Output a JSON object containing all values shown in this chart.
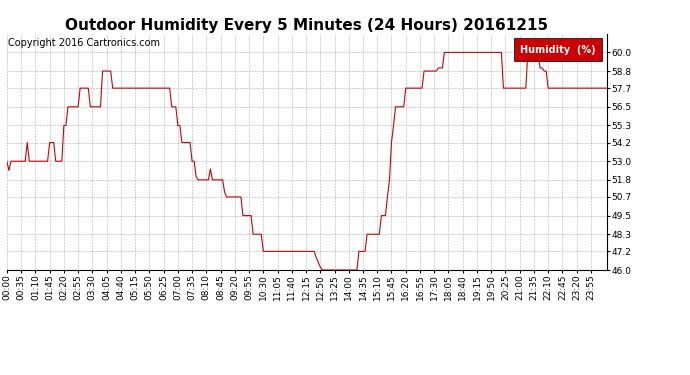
{
  "title": "Outdoor Humidity Every 5 Minutes (24 Hours) 20161215",
  "copyright": "Copyright 2016 Cartronics.com",
  "legend_label": "Humidity  (%)",
  "legend_bg": "#cc0000",
  "legend_text_color": "#ffffff",
  "line_color": "#cc0000",
  "bg_color": "#ffffff",
  "grid_color": "#999999",
  "ylim": [
    46.0,
    61.2
  ],
  "yticks": [
    46.0,
    47.2,
    48.3,
    49.5,
    50.7,
    51.8,
    53.0,
    54.2,
    55.3,
    56.5,
    57.7,
    58.8,
    60.0
  ],
  "title_fontsize": 11,
  "copyright_fontsize": 7,
  "tick_label_fontsize": 6.5,
  "xtick_labels": [
    "00:00",
    "00:35",
    "01:10",
    "01:45",
    "02:20",
    "02:55",
    "03:30",
    "04:05",
    "04:40",
    "05:15",
    "05:50",
    "06:25",
    "07:00",
    "07:35",
    "08:10",
    "08:45",
    "09:20",
    "09:55",
    "10:30",
    "11:05",
    "11:40",
    "12:15",
    "12:50",
    "13:25",
    "14:00",
    "14:35",
    "15:10",
    "15:45",
    "16:20",
    "16:55",
    "17:30",
    "18:05",
    "18:40",
    "19:15",
    "19:50",
    "20:25",
    "21:00",
    "21:35",
    "22:10",
    "22:45",
    "23:20",
    "23:55"
  ],
  "data": [
    53.0,
    52.4,
    53.0,
    53.0,
    53.0,
    53.0,
    53.0,
    53.0,
    53.0,
    53.0,
    54.2,
    53.0,
    53.0,
    53.0,
    53.0,
    53.0,
    53.0,
    53.0,
    53.0,
    53.0,
    53.0,
    54.2,
    54.2,
    54.2,
    53.0,
    53.0,
    53.0,
    53.0,
    55.3,
    55.3,
    56.5,
    56.5,
    56.5,
    56.5,
    56.5,
    56.5,
    57.7,
    57.7,
    57.7,
    57.7,
    57.7,
    56.5,
    56.5,
    56.5,
    56.5,
    56.5,
    56.5,
    58.8,
    58.8,
    58.8,
    58.8,
    58.8,
    57.7,
    57.7,
    57.7,
    57.7,
    57.7,
    57.7,
    57.7,
    57.7,
    57.7,
    57.7,
    57.7,
    57.7,
    57.7,
    57.7,
    57.7,
    57.7,
    57.7,
    57.7,
    57.7,
    57.7,
    57.7,
    57.7,
    57.7,
    57.7,
    57.7,
    57.7,
    57.7,
    57.7,
    57.7,
    56.5,
    56.5,
    56.5,
    55.3,
    55.3,
    54.2,
    54.2,
    54.2,
    54.2,
    54.2,
    53.0,
    53.0,
    52.0,
    51.8,
    51.8,
    51.8,
    51.8,
    51.8,
    51.8,
    52.5,
    51.8,
    51.8,
    51.8,
    51.8,
    51.8,
    51.8,
    51.0,
    50.7,
    50.7,
    50.7,
    50.7,
    50.7,
    50.7,
    50.7,
    50.7,
    49.5,
    49.5,
    49.5,
    49.5,
    49.5,
    48.3,
    48.3,
    48.3,
    48.3,
    48.3,
    47.2,
    47.2,
    47.2,
    47.2,
    47.2,
    47.2,
    47.2,
    47.2,
    47.2,
    47.2,
    47.2,
    47.2,
    47.2,
    47.2,
    47.2,
    47.2,
    47.2,
    47.2,
    47.2,
    47.2,
    47.2,
    47.2,
    47.2,
    47.2,
    47.2,
    47.2,
    46.8,
    46.5,
    46.2,
    46.0,
    46.0,
    46.0,
    46.0,
    46.0,
    46.0,
    46.0,
    46.0,
    46.0,
    46.0,
    46.0,
    46.0,
    46.0,
    46.0,
    46.0,
    46.0,
    46.0,
    46.0,
    47.2,
    47.2,
    47.2,
    47.2,
    48.3,
    48.3,
    48.3,
    48.3,
    48.3,
    48.3,
    48.3,
    49.5,
    49.5,
    49.5,
    50.7,
    51.8,
    54.2,
    55.3,
    56.5,
    56.5,
    56.5,
    56.5,
    56.5,
    57.7,
    57.7,
    57.7,
    57.7,
    57.7,
    57.7,
    57.7,
    57.7,
    57.7,
    58.8,
    58.8,
    58.8,
    58.8,
    58.8,
    58.8,
    58.8,
    59.0,
    59.0,
    59.0,
    60.0,
    60.0,
    60.0,
    60.0,
    60.0,
    60.0,
    60.0,
    60.0,
    60.0,
    60.0,
    60.0,
    60.0,
    60.0,
    60.0,
    60.0,
    60.0,
    60.0,
    60.0,
    60.0,
    60.0,
    60.0,
    60.0,
    60.0,
    60.0,
    60.0,
    60.0,
    60.0,
    60.0,
    60.0,
    57.7,
    57.7,
    57.7,
    57.7,
    57.7,
    57.7,
    57.7,
    57.7,
    57.7,
    57.7,
    57.7,
    57.7,
    60.0,
    60.0,
    60.0,
    60.0,
    60.0,
    60.0,
    59.0,
    59.0,
    58.8,
    58.8,
    57.7,
    57.7,
    57.7,
    57.7,
    57.7,
    57.7,
    57.7,
    57.7,
    57.7,
    57.7,
    57.7,
    57.7,
    57.7,
    57.7,
    57.7,
    57.7,
    57.7,
    57.7,
    57.7,
    57.7,
    57.7,
    57.7,
    57.7,
    57.7,
    57.7,
    57.7,
    57.7,
    57.7,
    57.7,
    57.7
  ]
}
